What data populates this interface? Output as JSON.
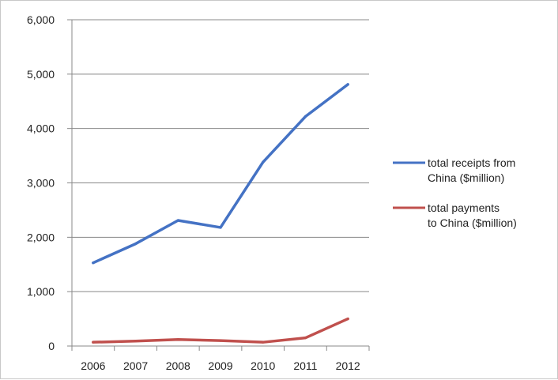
{
  "chart_data": {
    "type": "line",
    "title": "",
    "xlabel": "",
    "ylabel": "",
    "x": [
      "2006",
      "2007",
      "2008",
      "2009",
      "2010",
      "2011",
      "2012"
    ],
    "ylim": [
      0,
      6000
    ],
    "yticks": [
      0,
      1000,
      2000,
      3000,
      4000,
      5000,
      6000
    ],
    "ytick_labels": [
      "0",
      "1,000",
      "2,000",
      "3,000",
      "4,000",
      "5,000",
      "6,000"
    ],
    "grid": "horizontal",
    "legend_position": "right",
    "series": [
      {
        "name_lines": [
          "total receipts from",
          "China ($million)"
        ],
        "color": "#4472C4",
        "values": [
          1530,
          1880,
          2310,
          2180,
          3380,
          4220,
          4810
        ]
      },
      {
        "name_lines": [
          "total payments",
          "to China ($million)"
        ],
        "color": "#C0504D",
        "values": [
          70,
          90,
          120,
          100,
          70,
          150,
          500
        ]
      }
    ]
  }
}
